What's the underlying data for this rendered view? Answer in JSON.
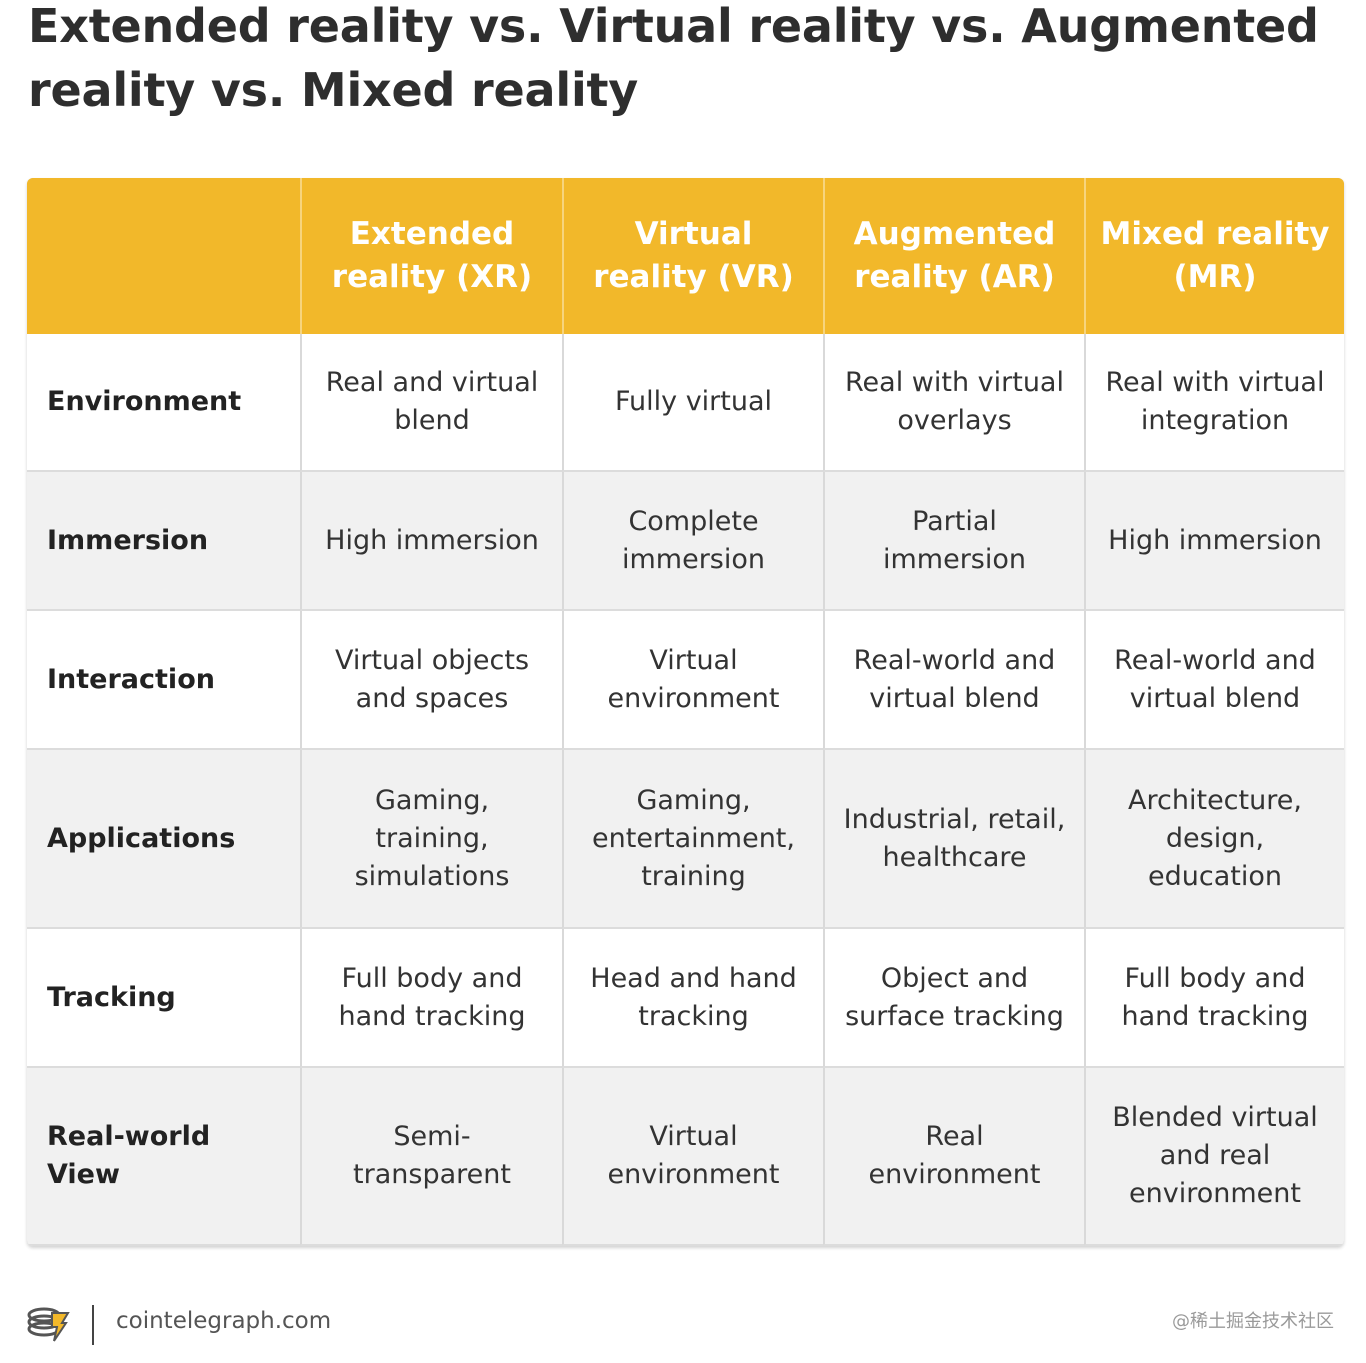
{
  "title": "Extended reality vs. Virtual reality vs. Augmented reality vs. Mixed reality",
  "table": {
    "headers": [
      "",
      "Extended reality (XR)",
      "Virtual reality (VR)",
      "Augmented reality (AR)",
      "Mixed reality (MR)"
    ],
    "rows": [
      {
        "label": "Environment",
        "cells": [
          "Real and virtual blend",
          "Fully virtual",
          "Real with virtual overlays",
          "Real with virtual integration"
        ]
      },
      {
        "label": "Immersion",
        "cells": [
          "High immersion",
          "Complete immersion",
          "Partial immersion",
          "High immersion"
        ]
      },
      {
        "label": "Interaction",
        "cells": [
          "Virtual objects and spaces",
          "Virtual environment",
          "Real-world and virtual blend",
          "Real-world and virtual blend"
        ]
      },
      {
        "label": "Applications",
        "cells": [
          "Gaming, training, simulations",
          "Gaming, entertainment, training",
          "Industrial, retail, healthcare",
          "Architecture, design, education"
        ]
      },
      {
        "label": "Tracking",
        "cells": [
          "Full body and hand tracking",
          "Head and hand tracking",
          "Object and surface tracking",
          "Full body and hand tracking"
        ]
      },
      {
        "label": "Real-world View",
        "cells": [
          "Semi-transparent",
          "Virtual environment",
          "Real environment",
          "Blended virtual and real environment"
        ]
      }
    ]
  },
  "footer": {
    "logo_icon": "cointelegraph-logo-icon",
    "site": "cointelegraph.com",
    "watermark": "@稀土掘金技术社区"
  },
  "colors": {
    "header_bg": "#f2b82a",
    "header_text": "#ffffff",
    "alt_row_bg": "#f1f1f1"
  }
}
